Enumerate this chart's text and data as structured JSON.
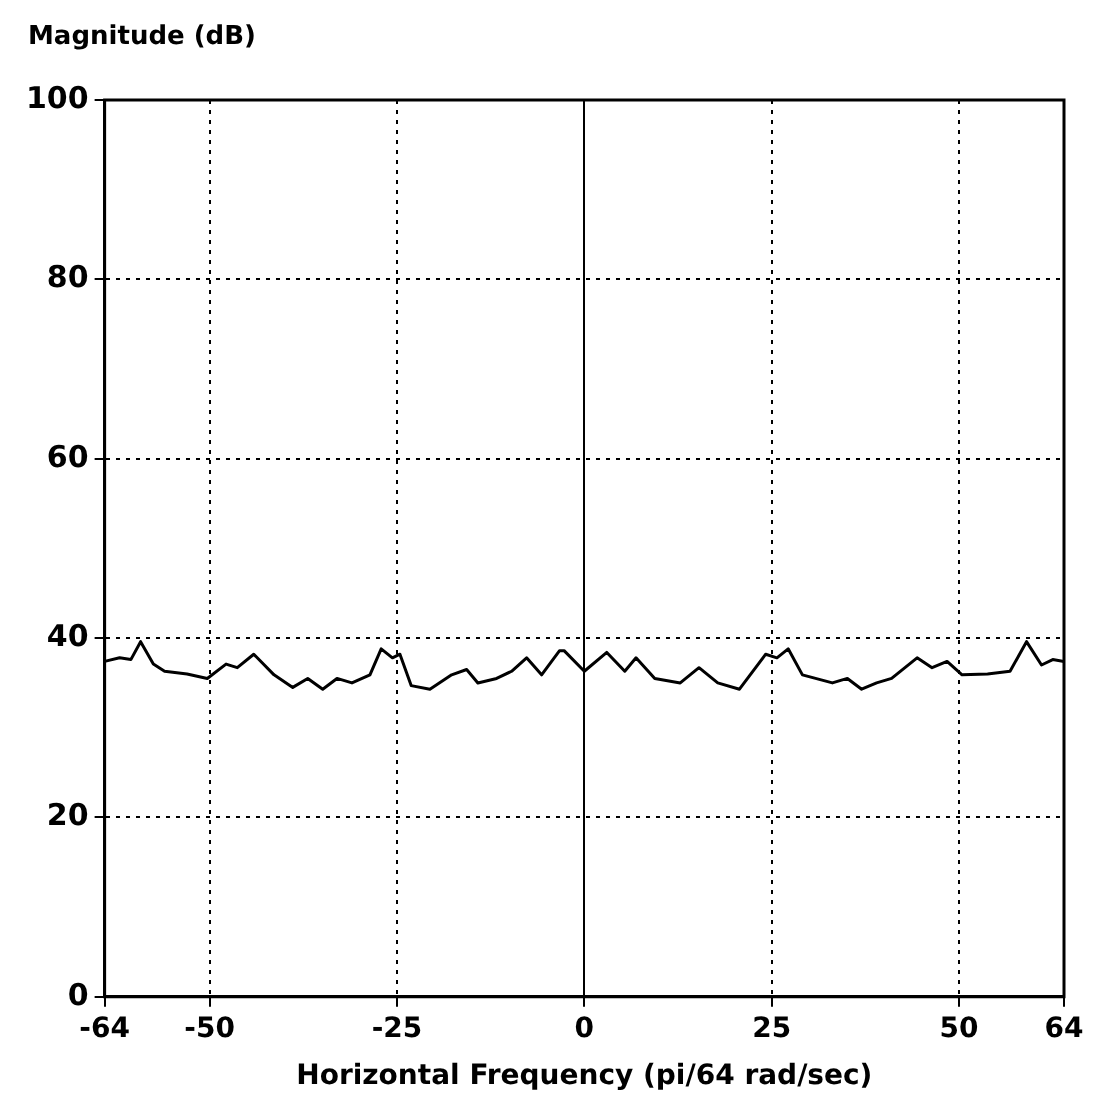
{
  "chart_data": {
    "type": "line",
    "xlabel": "Horizontal Frequency (pi/64 rad/sec)",
    "ylabel": "Magnitude (dB)",
    "xlim": [
      -64,
      64
    ],
    "xticks": [
      -64,
      -50,
      -25,
      0,
      25,
      50,
      64
    ],
    "ylim": [
      0,
      100
    ],
    "yticks": [
      0,
      20,
      40,
      60,
      80,
      100
    ],
    "grid": true,
    "legend": false,
    "marker": "none",
    "line_style": "solid",
    "series": [
      {
        "color": "#000000",
        "x": [
          -64,
          -62,
          -60.5,
          -59.2,
          -57.5,
          -56,
          -53,
          -50.3,
          -47.8,
          -46.3,
          -44.1,
          -41.4,
          -38.9,
          -36.9,
          -34.9,
          -33,
          -31,
          -28.6,
          -27.1,
          -25.6,
          -24.6,
          -23.1,
          -20.6,
          -17.7,
          -15.7,
          -14.2,
          -11.7,
          -9.7,
          -7.7,
          -5.7,
          -3.3,
          -2.7,
          0,
          3,
          5.4,
          6.9,
          9.4,
          12.8,
          15.3,
          17.8,
          20.7,
          24.2,
          25.7,
          27.2,
          29.1,
          33.1,
          35.1,
          37,
          39,
          41,
          44.4,
          46.4,
          48.4,
          50.4,
          53.8,
          56.8,
          59,
          61,
          62.5,
          64
        ],
        "values": [
          37.4,
          37.8,
          37.6,
          39.6,
          37.1,
          36.3,
          36,
          35.5,
          37.1,
          36.7,
          38.2,
          35.9,
          34.5,
          35.5,
          34.3,
          35.5,
          35,
          35.9,
          38.8,
          37.8,
          38.2,
          34.7,
          34.3,
          35.9,
          36.5,
          35,
          35.5,
          36.3,
          37.8,
          35.9,
          38.6,
          38.6,
          36.3,
          38.4,
          36.3,
          37.8,
          35.5,
          35,
          36.7,
          35,
          34.3,
          38.2,
          37.8,
          38.8,
          35.9,
          35,
          35.5,
          34.3,
          35,
          35.5,
          37.8,
          36.7,
          37.4,
          35.9,
          36,
          36.3,
          39.6,
          37,
          37.6,
          37.4
        ]
      }
    ]
  }
}
